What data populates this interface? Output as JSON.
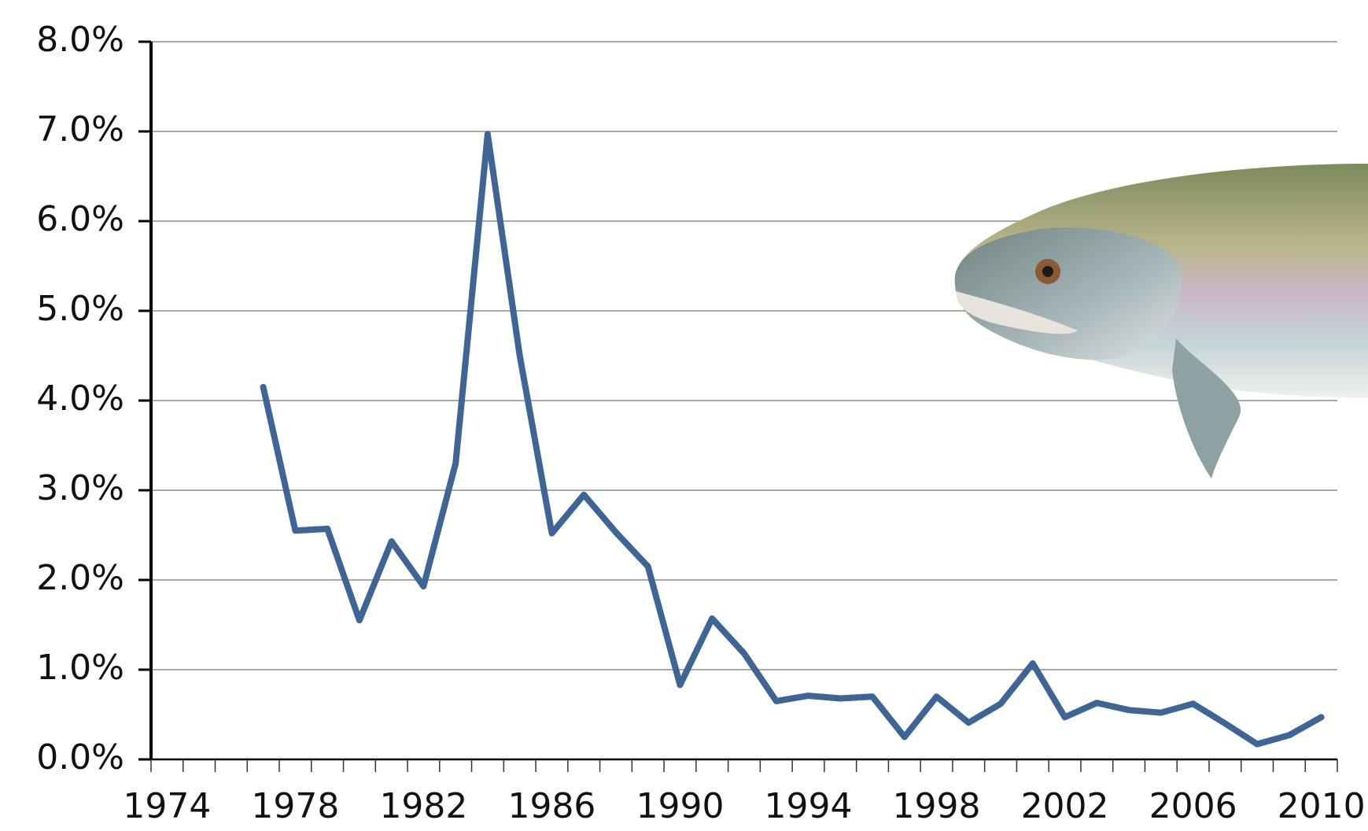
{
  "chart_data": {
    "type": "line",
    "color": "#3e6593",
    "categories": [
      "1974",
      null,
      null,
      null,
      "1978",
      null,
      null,
      null,
      "1982",
      null,
      null,
      null,
      "1986",
      null,
      null,
      null,
      "1990",
      null,
      null,
      null,
      "1994",
      null,
      null,
      null,
      "1998",
      null,
      null,
      null,
      "2002",
      null,
      null,
      null,
      "2006",
      null,
      null,
      null,
      "2010"
    ],
    "values": [
      null,
      null,
      null,
      4.15,
      2.55,
      2.57,
      1.55,
      2.43,
      1.93,
      3.3,
      6.97,
      4.5,
      2.52,
      2.95,
      2.53,
      2.15,
      0.83,
      1.57,
      1.18,
      0.65,
      0.71,
      0.68,
      0.7,
      0.25,
      0.7,
      0.41,
      0.62,
      1.07,
      0.47,
      0.63,
      0.55,
      0.52,
      0.62,
      0.4,
      0.17,
      0.27,
      0.47
    ],
    "ylim": [
      0,
      8
    ],
    "yticks": [
      {
        "value": 0,
        "label": "0.0%"
      },
      {
        "value": 1,
        "label": "1.0%"
      },
      {
        "value": 2,
        "label": "2.0%"
      },
      {
        "value": 3,
        "label": "3.0%"
      },
      {
        "value": 4,
        "label": "4.0%"
      },
      {
        "value": 5,
        "label": "5.0%"
      },
      {
        "value": 6,
        "label": "6.0%"
      },
      {
        "value": 7,
        "label": "7.0%"
      },
      {
        "value": 8,
        "label": "8.0%"
      }
    ],
    "grid": true
  }
}
